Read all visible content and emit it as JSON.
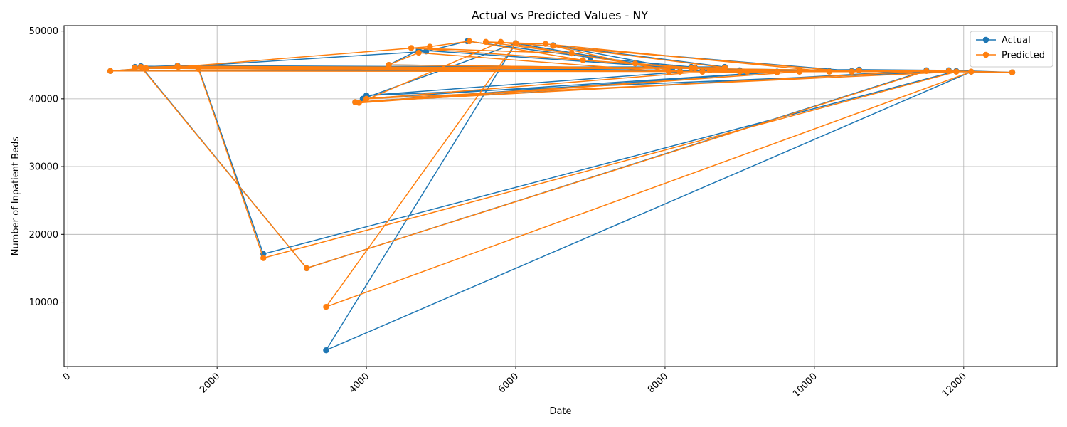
{
  "chart_data": {
    "type": "line",
    "title": "Actual vs Predicted Values - NY",
    "xlabel": "Date",
    "ylabel": "Number of Inpatient Beds",
    "xlim": [
      -50,
      13250
    ],
    "ylim": [
      500,
      50800
    ],
    "xticks": [
      0,
      2000,
      4000,
      6000,
      8000,
      10000,
      12000
    ],
    "yticks": [
      10000,
      20000,
      30000,
      40000,
      50000
    ],
    "grid": true,
    "legend_position": "top-right",
    "series": [
      {
        "name": "Actual",
        "color": "#1f77b4",
        "points": [
          [
            900,
            44700
          ],
          [
            1470,
            44900
          ],
          [
            8400,
            44600
          ],
          [
            9000,
            44200
          ],
          [
            10600,
            44300
          ],
          [
            11800,
            44200
          ],
          [
            12650,
            43900
          ],
          [
            4300,
            45000
          ],
          [
            4700,
            47200
          ],
          [
            8100,
            44600
          ],
          [
            6500,
            47900
          ],
          [
            8800,
            44700
          ],
          [
            1480,
            44700
          ],
          [
            4800,
            47000
          ],
          [
            5350,
            48500
          ],
          [
            7000,
            46100
          ],
          [
            8350,
            44700
          ],
          [
            1750,
            44600
          ],
          [
            2620,
            17100
          ],
          [
            11900,
            44100
          ],
          [
            4000,
            40500
          ],
          [
            8500,
            44200
          ],
          [
            980,
            44800
          ],
          [
            3200,
            15000
          ],
          [
            11500,
            44200
          ],
          [
            3850,
            39500
          ],
          [
            9800,
            44200
          ],
          [
            3950,
            40000
          ],
          [
            6000,
            48200
          ],
          [
            8200,
            44100
          ],
          [
            12100,
            44000
          ],
          [
            3460,
            2900
          ],
          [
            6000,
            48200
          ],
          [
            10500,
            44100
          ],
          [
            570,
            44100
          ],
          [
            1050,
            44500
          ],
          [
            9500,
            44000
          ],
          [
            8600,
            44300
          ],
          [
            10200,
            44100
          ]
        ]
      },
      {
        "name": "Predicted",
        "color": "#ff7f0e",
        "points": [
          [
            900,
            44600
          ],
          [
            1470,
            44800
          ],
          [
            8400,
            44500
          ],
          [
            9000,
            44000
          ],
          [
            10600,
            44200
          ],
          [
            11800,
            44100
          ],
          [
            12650,
            43900
          ],
          [
            4300,
            45000
          ],
          [
            4700,
            46800
          ],
          [
            8050,
            44000
          ],
          [
            6500,
            47800
          ],
          [
            8800,
            44600
          ],
          [
            1480,
            44700
          ],
          [
            4850,
            47700
          ],
          [
            5380,
            48500
          ],
          [
            6900,
            45700
          ],
          [
            8350,
            44500
          ],
          [
            1750,
            44400
          ],
          [
            2620,
            16500
          ],
          [
            11900,
            44000
          ],
          [
            4000,
            40000
          ],
          [
            8500,
            44000
          ],
          [
            980,
            44700
          ],
          [
            3200,
            15000
          ],
          [
            11500,
            44100
          ],
          [
            3850,
            39500
          ],
          [
            9800,
            44000
          ],
          [
            3900,
            39400
          ],
          [
            5800,
            48400
          ],
          [
            8200,
            44000
          ],
          [
            12100,
            44000
          ],
          [
            3460,
            9300
          ],
          [
            6000,
            48200
          ],
          [
            10500,
            44000
          ],
          [
            570,
            44100
          ],
          [
            1050,
            44500
          ],
          [
            9500,
            43900
          ],
          [
            8600,
            44200
          ],
          [
            10200,
            44000
          ],
          [
            6400,
            48100
          ],
          [
            5600,
            48400
          ],
          [
            6750,
            46700
          ],
          [
            4600,
            47500
          ],
          [
            9100,
            44000
          ],
          [
            7600,
            45200
          ]
        ]
      }
    ]
  }
}
